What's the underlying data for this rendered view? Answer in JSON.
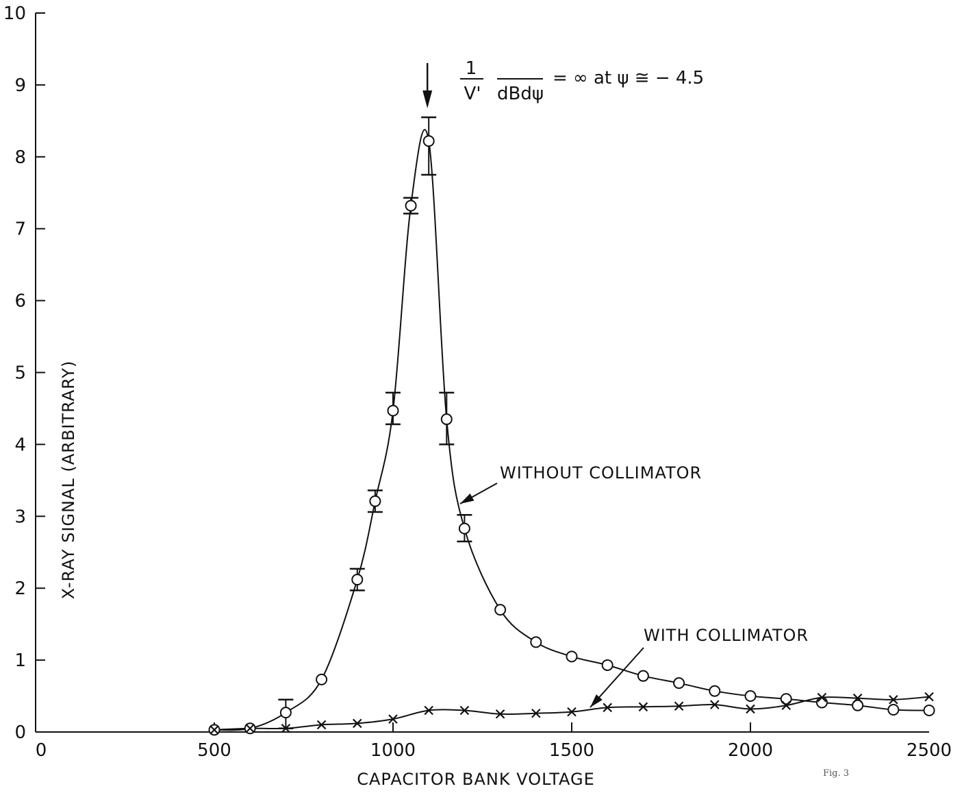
{
  "chart_data": {
    "type": "line",
    "xlabel": "CAPACITOR BANK VOLTAGE",
    "ylabel": "X-RAY SIGNAL (ARBITRARY)",
    "xlim": [
      0,
      2500
    ],
    "ylim": [
      0,
      10
    ],
    "x_ticks": [
      "0",
      "500",
      "1000",
      "1500",
      "2000",
      "2500"
    ],
    "y_ticks": [
      "0",
      "1",
      "2",
      "3",
      "4",
      "5",
      "6",
      "7",
      "8",
      "9",
      "10"
    ],
    "grid": false,
    "figure_label": "Fig. 3",
    "annotation": {
      "numerator": "1",
      "denominator_left": "V'",
      "denominator_right": "dBdψ",
      "text": "= ∞  at  ψ ≅ − 4.5",
      "arrow_x": 1100
    },
    "series": [
      {
        "name": "WITHOUT COLLIMATOR",
        "marker": "circle",
        "x": [
          500,
          600,
          700,
          800,
          900,
          950,
          1000,
          1050,
          1100,
          1150,
          1200,
          1300,
          1400,
          1500,
          1600,
          1700,
          1800,
          1900,
          2000,
          2100,
          2200,
          2300,
          2400,
          2500
        ],
        "y": [
          0.03,
          0.05,
          0.27,
          0.73,
          2.12,
          3.21,
          4.47,
          7.32,
          8.22,
          4.35,
          2.83,
          1.7,
          1.25,
          1.05,
          0.93,
          0.78,
          0.68,
          0.57,
          0.5,
          0.46,
          0.41,
          0.37,
          0.31,
          0.3
        ],
        "error_bars": [
          {
            "x": 700,
            "low": 0.05,
            "high": 0.45
          },
          {
            "x": 900,
            "low": 1.97,
            "high": 2.27
          },
          {
            "x": 950,
            "low": 3.06,
            "high": 3.36
          },
          {
            "x": 1000,
            "low": 4.28,
            "high": 4.72
          },
          {
            "x": 1050,
            "low": 7.21,
            "high": 7.43
          },
          {
            "x": 1100,
            "low": 7.75,
            "high": 8.55
          },
          {
            "x": 1150,
            "low": 4.0,
            "high": 4.72
          },
          {
            "x": 1200,
            "low": 2.65,
            "high": 3.02
          }
        ]
      },
      {
        "name": "WITH COLLIMATOR",
        "marker": "x",
        "x": [
          500,
          600,
          700,
          800,
          900,
          1000,
          1100,
          1200,
          1300,
          1400,
          1500,
          1600,
          1700,
          1800,
          1900,
          2000,
          2100,
          2200,
          2300,
          2400,
          2500
        ],
        "y": [
          0.03,
          0.05,
          0.05,
          0.1,
          0.12,
          0.18,
          0.3,
          0.3,
          0.25,
          0.26,
          0.28,
          0.34,
          0.35,
          0.36,
          0.38,
          0.32,
          0.37,
          0.48,
          0.47,
          0.45,
          0.49
        ]
      }
    ]
  }
}
